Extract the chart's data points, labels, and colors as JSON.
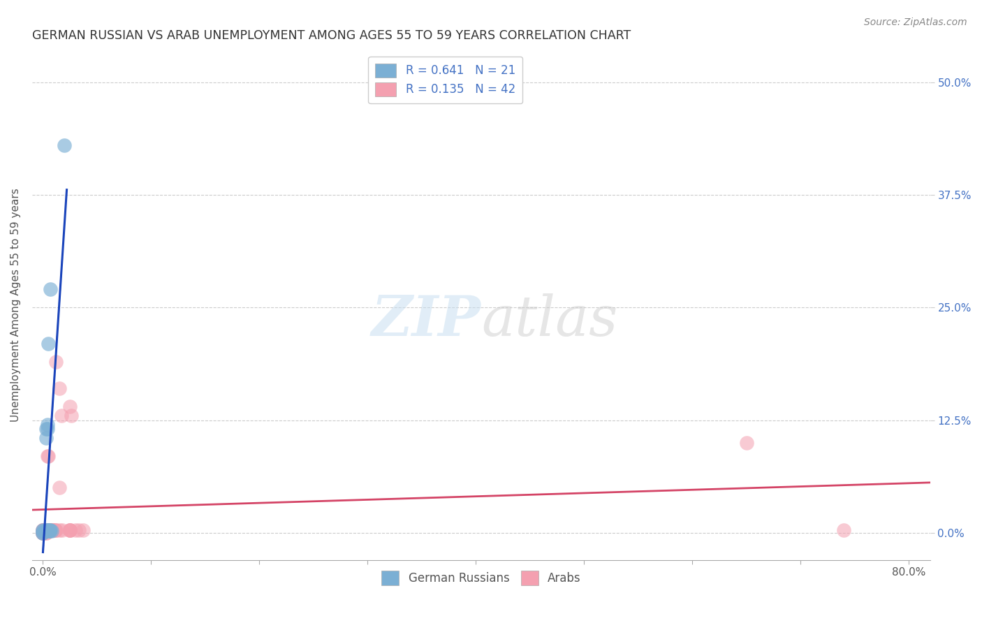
{
  "title": "GERMAN RUSSIAN VS ARAB UNEMPLOYMENT AMONG AGES 55 TO 59 YEARS CORRELATION CHART",
  "source": "Source: ZipAtlas.com",
  "ylabel": "Unemployment Among Ages 55 to 59 years",
  "legend_label1": "German Russians",
  "legend_label2": "Arabs",
  "R1": 0.641,
  "N1": 21,
  "R2": 0.135,
  "N2": 42,
  "xlim": [
    -0.01,
    0.82
  ],
  "ylim": [
    -0.03,
    0.535
  ],
  "xticks": [
    0.0,
    0.1,
    0.2,
    0.3,
    0.4,
    0.5,
    0.6,
    0.7,
    0.8
  ],
  "xtick_edge_labels": {
    "0.0": "0.0%",
    "0.8": "80.0%"
  },
  "yticks": [
    0.0,
    0.125,
    0.25,
    0.375,
    0.5
  ],
  "ytick_right_labels": [
    "0.0%",
    "12.5%",
    "25.0%",
    "37.5%",
    "50.0%"
  ],
  "grid_color": "#cccccc",
  "background_color": "#ffffff",
  "color_blue": "#7bafd4",
  "color_pink": "#f4a0b0",
  "line_blue": "#1a44bb",
  "line_pink": "#d44466",
  "german_russian_x": [
    0.0,
    0.0,
    0.0,
    0.0,
    0.003,
    0.003,
    0.004,
    0.004,
    0.004,
    0.005,
    0.005,
    0.005,
    0.005,
    0.006,
    0.006,
    0.006,
    0.007,
    0.007,
    0.008,
    0.02,
    0.003
  ],
  "german_russian_y": [
    0.0,
    0.0,
    0.002,
    0.003,
    0.105,
    0.115,
    0.115,
    0.12,
    0.003,
    0.21,
    0.002,
    0.002,
    0.003,
    0.003,
    0.002,
    0.002,
    0.27,
    0.003,
    0.002,
    0.43,
    0.003
  ],
  "arab_x": [
    0.0,
    0.0,
    0.0,
    0.0,
    0.0,
    0.0,
    0.0,
    0.003,
    0.003,
    0.003,
    0.003,
    0.003,
    0.004,
    0.005,
    0.005,
    0.006,
    0.006,
    0.007,
    0.007,
    0.009,
    0.009,
    0.009,
    0.011,
    0.011,
    0.012,
    0.012,
    0.015,
    0.015,
    0.015,
    0.017,
    0.018,
    0.025,
    0.025,
    0.025,
    0.025,
    0.025,
    0.026,
    0.03,
    0.033,
    0.037,
    0.65,
    0.74
  ],
  "arab_y": [
    0.0,
    0.0,
    0.0,
    0.0,
    0.003,
    0.003,
    0.003,
    0.0,
    0.0,
    0.003,
    0.003,
    0.003,
    0.085,
    0.085,
    0.003,
    0.003,
    0.003,
    0.003,
    0.003,
    0.003,
    0.003,
    0.003,
    0.003,
    0.003,
    0.19,
    0.003,
    0.003,
    0.05,
    0.16,
    0.13,
    0.003,
    0.003,
    0.003,
    0.003,
    0.14,
    0.003,
    0.13,
    0.003,
    0.003,
    0.003,
    0.1,
    0.003
  ]
}
